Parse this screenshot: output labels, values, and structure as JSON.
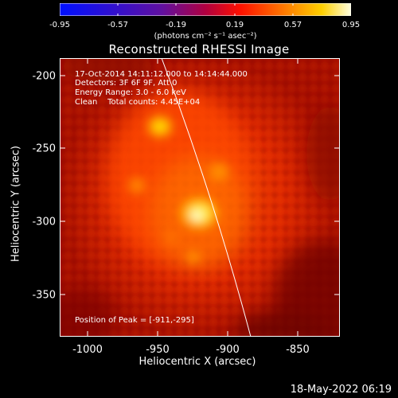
{
  "colorbar": {
    "ticks": [
      "-0.95",
      "-0.57",
      "-0.19",
      "0.19",
      "0.57",
      "0.95"
    ],
    "unit": "(photons cm⁻² s⁻¹ asec⁻²)",
    "colors": [
      "#0000ff",
      "#ff0000",
      "#ffffff"
    ]
  },
  "title": "Reconstructed RHESSI Image",
  "annotations": {
    "time": "17-Oct-2014 14:11:12.000 to 14:14:44.000",
    "detectors": "Detectors: 3F 6F 9F, Att 0",
    "energy": "Energy Range: 3.0 - 6.0 keV",
    "clean": "Clean    Total counts: 4.45E+04",
    "peak": "Position of Peak = [-911,-295]"
  },
  "axes": {
    "x_label": "Heliocentric X (arcsec)",
    "y_label": "Heliocentric Y (arcsec)",
    "x_ticks": [
      "-1000",
      "-950",
      "-900",
      "-850"
    ],
    "y_ticks": [
      "-200",
      "-250",
      "-300",
      "-350"
    ]
  },
  "timestamp": "18-May-2022 06:19"
}
